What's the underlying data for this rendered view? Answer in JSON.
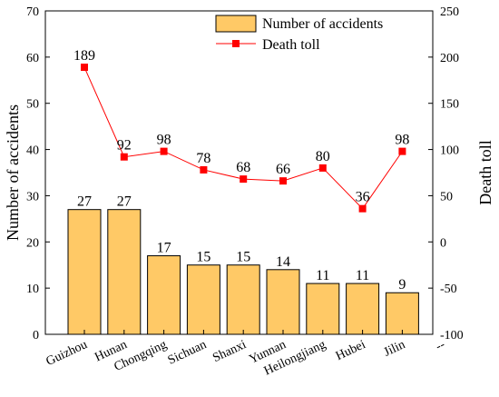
{
  "chart_data": {
    "type": "bar",
    "categories": [
      "Guizhou",
      "Hunan",
      "Chongqing",
      "Sichuan",
      "Shanxi",
      "Yunnan",
      "Heilongjiang",
      "Hubei",
      "Jilin"
    ],
    "series": [
      {
        "name": "Number of accidents",
        "type": "bar",
        "axis": "left",
        "values": [
          27,
          27,
          17,
          15,
          15,
          14,
          11,
          11,
          9
        ],
        "labels": [
          "27",
          "27",
          "17",
          "15",
          "15",
          "14",
          "11",
          "11",
          "9"
        ],
        "color": "#FFC966"
      },
      {
        "name": "Death toll",
        "type": "line",
        "axis": "right",
        "values": [
          189,
          92,
          98,
          78,
          68,
          66,
          80,
          36,
          98
        ],
        "labels": [
          "189",
          "92",
          "98",
          "78",
          "68",
          "66",
          "80",
          "36",
          "98"
        ],
        "color": "#FF0000"
      }
    ],
    "ylabel_left": "Number of accidents",
    "ylabel_right": "Death toll",
    "ylim_left": [
      0,
      70
    ],
    "ylim_right": [
      -100,
      250
    ],
    "yticks_left": [
      "0",
      "10",
      "20",
      "30",
      "40",
      "50",
      "60",
      "70"
    ],
    "yticks_right": [
      "-100",
      "-50",
      "0",
      "50",
      "100",
      "150",
      "200",
      "250"
    ],
    "extra_xtick": "--",
    "legend_position": "top-right",
    "grid": false
  }
}
